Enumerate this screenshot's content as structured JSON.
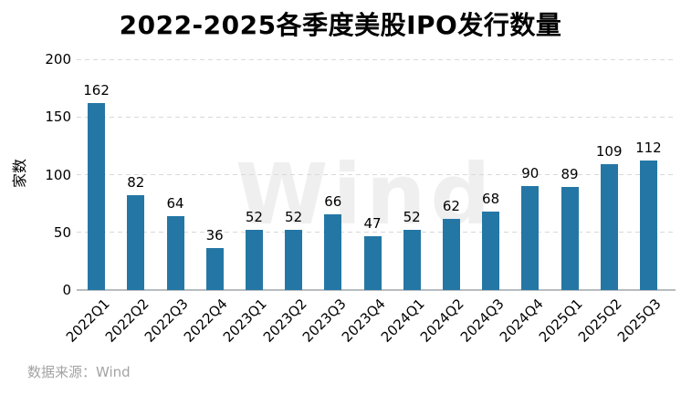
{
  "chart_data": {
    "type": "bar",
    "title": "2022-2025各季度美股IPO发行数量",
    "ylabel": "家数",
    "xlabel": "",
    "categories": [
      "2022Q1",
      "2022Q2",
      "2022Q3",
      "2022Q4",
      "2023Q1",
      "2023Q2",
      "2023Q3",
      "2023Q4",
      "2024Q1",
      "2024Q2",
      "2024Q3",
      "2024Q4",
      "2025Q1",
      "2025Q2",
      "2025Q3"
    ],
    "values": [
      162,
      82,
      64,
      36,
      52,
      52,
      66,
      47,
      52,
      62,
      68,
      90,
      89,
      109,
      112
    ],
    "ylim": [
      0,
      200
    ],
    "yticks": [
      0,
      50,
      100,
      150,
      200
    ],
    "grid": "horizontal-dashed",
    "legend_position": "none",
    "value_labels": "above-bars",
    "x_tick_rotation_deg": 45,
    "watermark": "Wind",
    "source_label": "数据来源：Wind",
    "colors": {
      "bar": "#2477A5",
      "gridline": "#d9d9d9",
      "axis_line": "#b6bcc0",
      "text": "#000000",
      "source_text": "#a3a3a3",
      "watermark": "#efefef",
      "background": "#ffffff"
    }
  }
}
